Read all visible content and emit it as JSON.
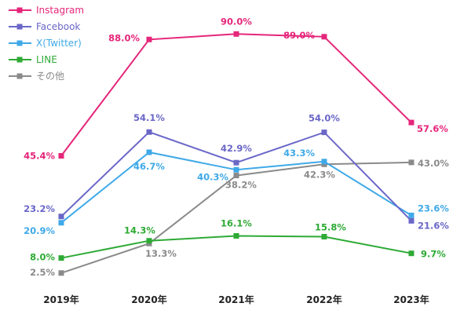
{
  "chart_data": {
    "type": "line",
    "categories": [
      "2019年",
      "2020年",
      "2021年",
      "2022年",
      "2023年"
    ],
    "ylim": [
      0,
      100
    ],
    "grid": false,
    "legend_position": "top-left",
    "series": [
      {
        "name": "Instagram",
        "color": "#e5267a",
        "values": [
          45.4,
          88.0,
          90.0,
          89.0,
          57.6
        ],
        "labels": [
          "45.4%",
          "88.0%",
          "90.0%",
          "89.0%",
          "57.6%"
        ]
      },
      {
        "name": "Facebook",
        "color": "#6a67c8",
        "values": [
          23.2,
          54.1,
          42.9,
          54.0,
          21.6
        ],
        "labels": [
          "23.2%",
          "54.1%",
          "42.9%",
          "54.0%",
          "21.6%"
        ]
      },
      {
        "name": "X(Twitter)",
        "color": "#3fa9e8",
        "values": [
          20.9,
          46.7,
          40.3,
          43.3,
          23.6
        ],
        "labels": [
          "20.9%",
          "46.7%",
          "40.3%",
          "43.3%",
          "23.6%"
        ]
      },
      {
        "name": "LINE",
        "color": "#2eaa35",
        "values": [
          8.0,
          14.3,
          16.1,
          15.8,
          9.7
        ],
        "labels": [
          "8.0%",
          "14.3%",
          "16.1%",
          "15.8%",
          "9.7%"
        ]
      },
      {
        "name": "その他",
        "color": "#8a8a8a",
        "values": [
          2.5,
          13.3,
          38.2,
          42.3,
          43.0
        ],
        "labels": [
          "2.5%",
          "13.3%",
          "38.2%",
          "42.3%",
          "43.0%"
        ]
      }
    ]
  }
}
